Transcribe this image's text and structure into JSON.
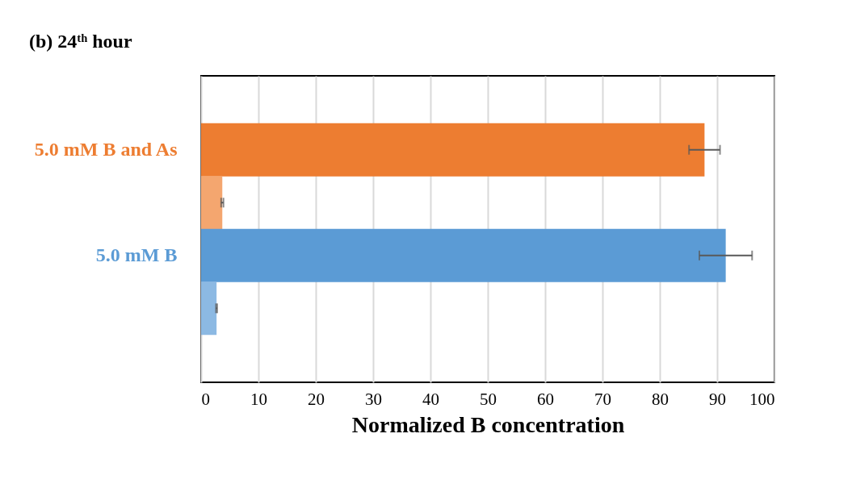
{
  "chart_data": {
    "type": "bar",
    "orientation": "horizontal",
    "title": "(b) 24ᵗʰ hour",
    "xlabel": "Normalized B concentration",
    "categories": [
      "5.0 mM B and As",
      null,
      "5.0 mM B",
      null
    ],
    "values": [
      87.8,
      3.7,
      91.5,
      2.7
    ],
    "errors": [
      2.7,
      0.2,
      4.6,
      0.1
    ],
    "colors": [
      "#ed7d31",
      "#f4a66f",
      "#5b9bd5",
      "#8cb9e3"
    ],
    "xlim": [
      0,
      100
    ],
    "xticks": [
      0,
      10,
      20,
      30,
      40,
      50,
      60,
      70,
      80,
      90,
      100
    ],
    "grid": "x"
  }
}
